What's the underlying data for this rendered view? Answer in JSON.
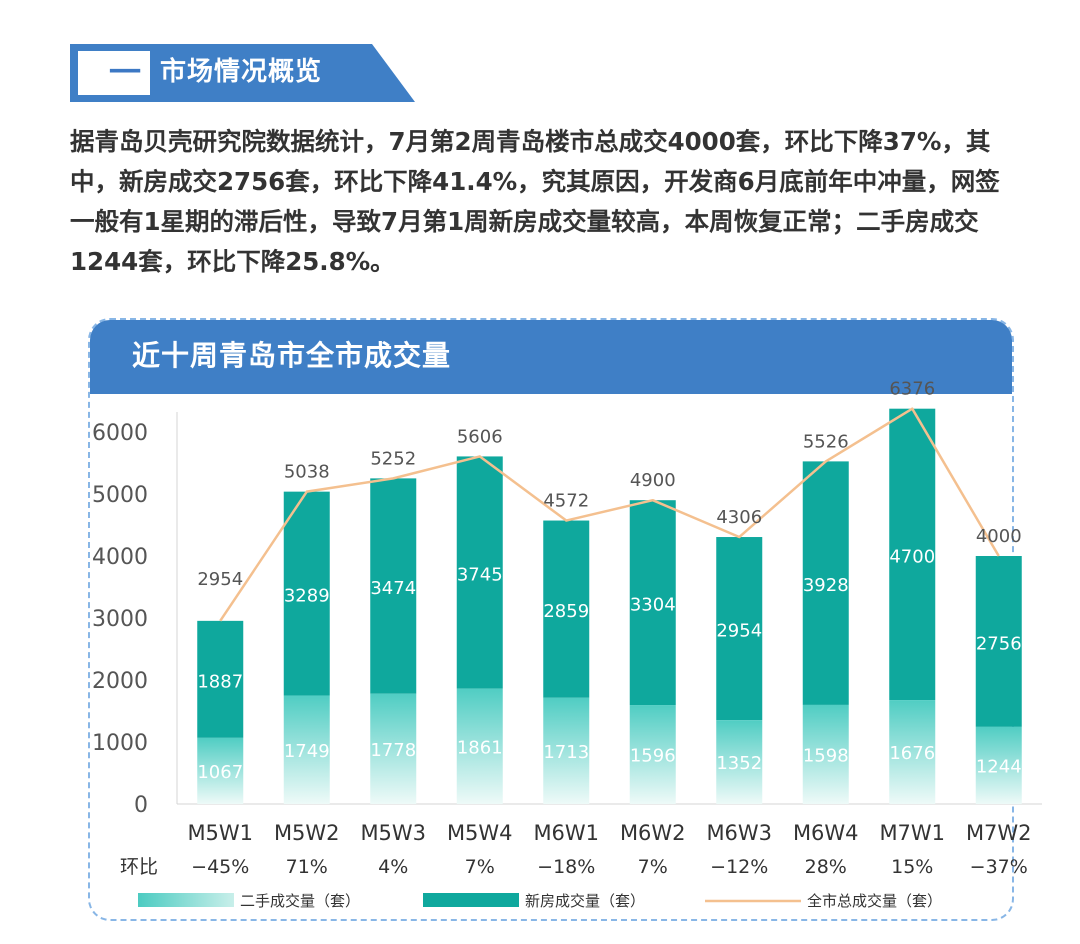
{
  "section": {
    "number": "一",
    "title": "市场情况概览"
  },
  "intro": "据青岛贝壳研究院数据统计，7月第2周青岛楼市总成交4000套，环比下降37%，其中，新房成交2756套，环比下降41.4%，究其原因，开发商6月底前年中冲量，网签一般有1星期的滞后性，导致7月第1周新房成交量较高，本周恢复正常；二手房成交1244套，环比下降25.8%。",
  "panel": {
    "title": "近十周青岛市全市成交量"
  },
  "colors": {
    "new_house": "#0fa89d",
    "second_hand": "#56d1c8",
    "total_line": "#f4c08f",
    "header": "#3f7fc6"
  },
  "chart_data": {
    "type": "bar",
    "stacked": true,
    "title": "近十周青岛市全市成交量",
    "categories": [
      "M5W1",
      "M5W2",
      "M5W3",
      "M5W4",
      "M6W1",
      "M6W2",
      "M6W3",
      "M6W4",
      "M7W1",
      "M7W2"
    ],
    "series": [
      {
        "name": "二手成交量（套）",
        "values": [
          1067,
          1749,
          1778,
          1861,
          1713,
          1596,
          1352,
          1598,
          1676,
          1244
        ]
      },
      {
        "name": "新房成交量（套）",
        "values": [
          1887,
          3289,
          3474,
          3745,
          2859,
          3304,
          2954,
          3928,
          4700,
          2756
        ]
      },
      {
        "name": "全市总成交量（套）",
        "type": "line",
        "values": [
          2954,
          5038,
          5252,
          5606,
          4572,
          4900,
          4306,
          5526,
          6376,
          4000
        ]
      }
    ],
    "ylim": [
      0,
      6000
    ],
    "yticks": [
      0,
      1000,
      2000,
      3000,
      4000,
      5000,
      6000
    ],
    "ratio_label": "环比",
    "ratio": [
      "−45%",
      "71%",
      "4%",
      "7%",
      "−18%",
      "7%",
      "−12%",
      "28%",
      "15%",
      "−37%"
    ],
    "legend": [
      "二手成交量（套）",
      "新房成交量（套）",
      "全市总成交量（套）"
    ],
    "legend_position": "bottom"
  }
}
